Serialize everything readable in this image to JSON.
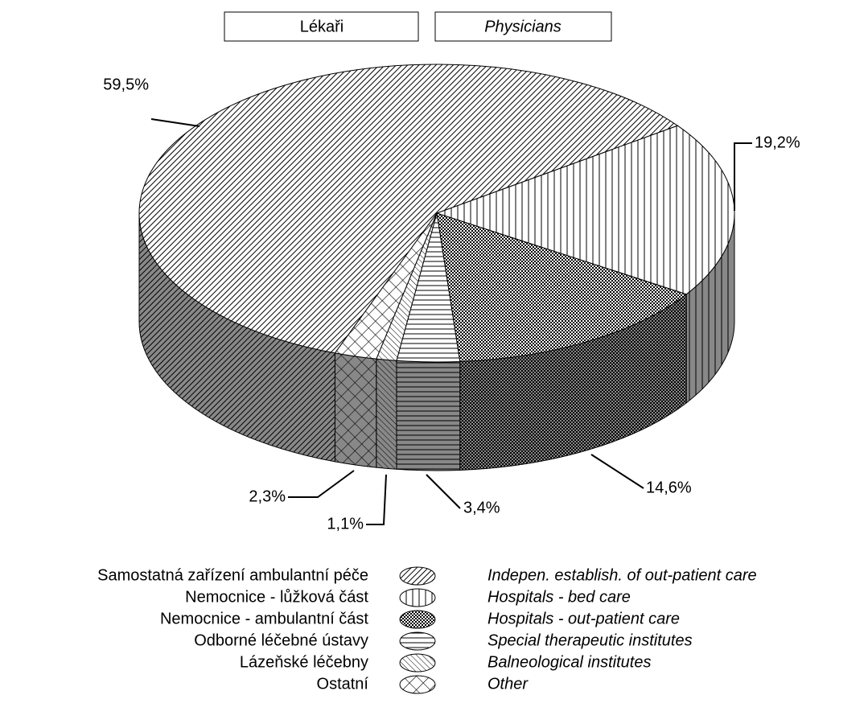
{
  "chart_data": {
    "type": "pie3d",
    "title": "Lékaři",
    "title_en": "Physicians",
    "categories": [
      "Samostatná zařízení ambulantní péče",
      "Nemocnice - lůžková část",
      "Nemocnice - ambulantní část",
      "Odborné léčebné ústavy",
      "Lázeňské léčebny",
      "Ostatní"
    ],
    "categories_en": [
      "Indepen. establish. of out-patient care",
      "Hospitals - bed care",
      "Hospitals - out-patient care",
      "Special therapeutic institutes",
      "Balneological institutes",
      "Other"
    ],
    "values": [
      59.5,
      19.2,
      14.6,
      3.4,
      1.1,
      2.3
    ],
    "value_labels": [
      "59,5%",
      "19,2%",
      "14,6%",
      "3,4%",
      "1,1%",
      "2,3%"
    ]
  }
}
